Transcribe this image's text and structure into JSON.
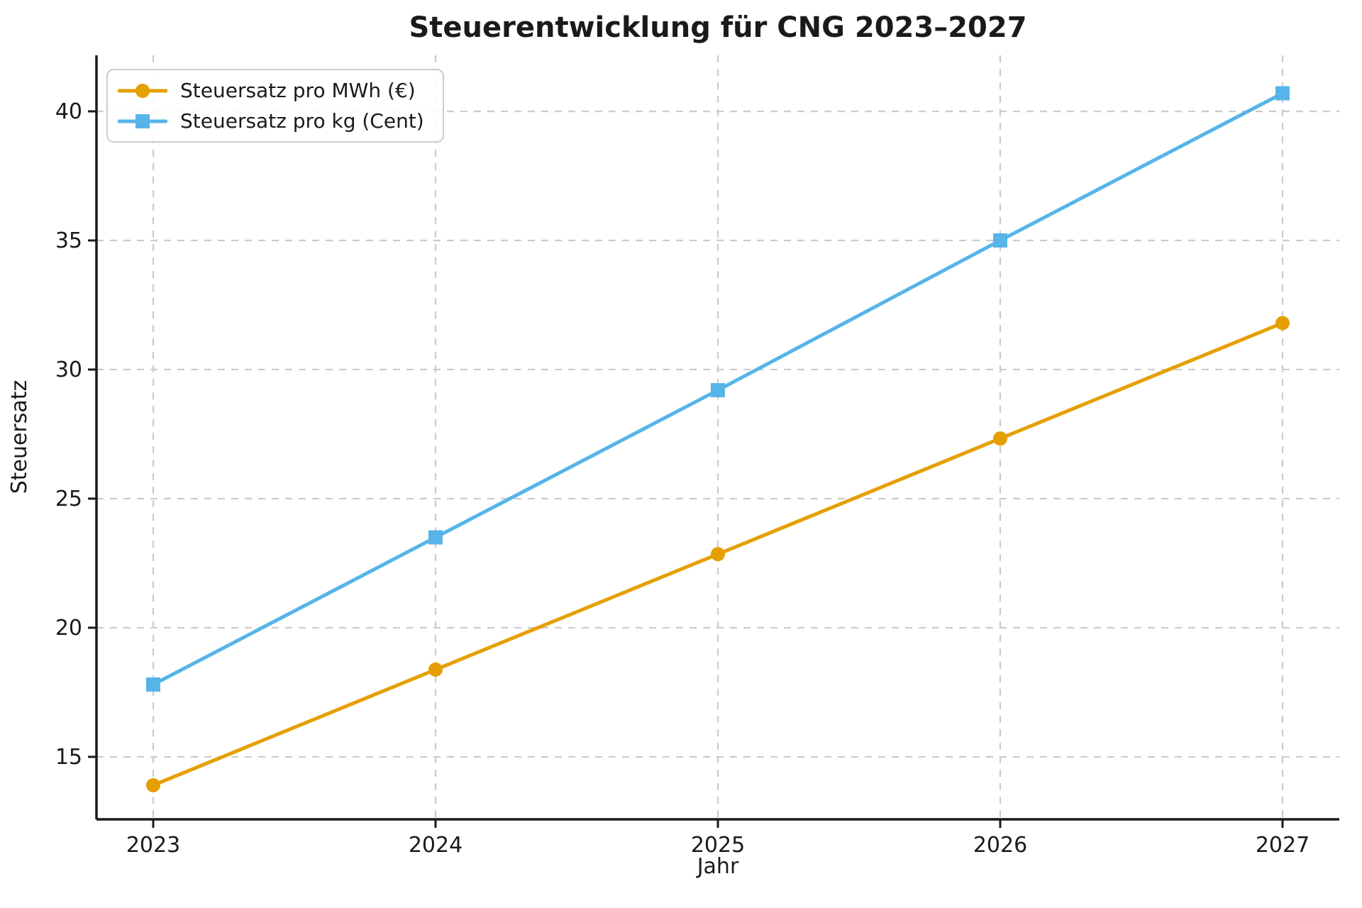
{
  "chart_data": {
    "type": "line",
    "title": "Steuerentwicklung für CNG 2023–2027",
    "xlabel": "Jahr",
    "ylabel": "Steuersatz",
    "categories": [
      "2023",
      "2024",
      "2025",
      "2026",
      "2027"
    ],
    "series": [
      {
        "name": "Steuersatz pro MWh (€)",
        "values": [
          13.9,
          18.38,
          22.85,
          27.33,
          31.8
        ],
        "color": "#E69F00",
        "marker": "circle"
      },
      {
        "name": "Steuersatz pro kg (Cent)",
        "values": [
          17.8,
          23.5,
          29.2,
          35.0,
          40.7
        ],
        "color": "#56B4E9",
        "marker": "square"
      }
    ],
    "yticks": [
      15,
      20,
      25,
      30,
      35,
      40
    ],
    "ylim": [
      12.6,
      42.2
    ],
    "grid": true,
    "grid_style": "dashed",
    "legend_position": "upper left",
    "colors": {
      "text": "#1a1a1a",
      "grid": "#cbcbcb",
      "background": "#ffffff"
    }
  }
}
